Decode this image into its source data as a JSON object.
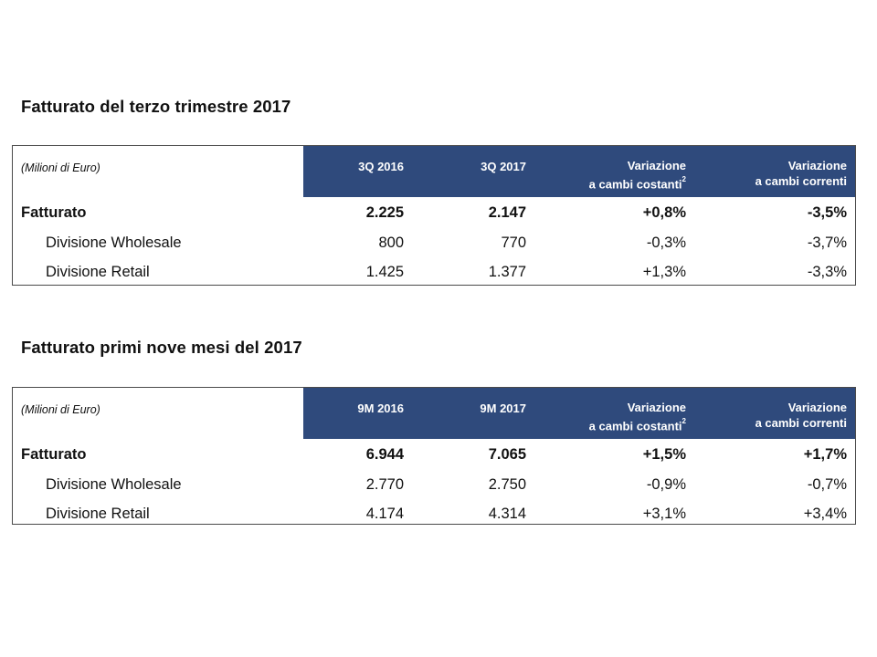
{
  "sections": [
    {
      "title": "Fatturato del terzo trimestre 2017",
      "unit_label": "(Milioni di Euro)",
      "columns": [
        {
          "label": "3Q 2016"
        },
        {
          "label": "3Q 2017"
        },
        {
          "label_line1": "Variazione",
          "label_line2": "a cambi costanti",
          "footnote": "2"
        },
        {
          "label_line1": "Variazione",
          "label_line2": "a cambi correnti"
        }
      ],
      "rows": [
        {
          "label": "Fatturato",
          "values": [
            "2.225",
            "2.147",
            "+0,8%",
            "-3,5%"
          ]
        },
        {
          "label": "Divisione Wholesale",
          "values": [
            "800",
            "770",
            "-0,3%",
            "-3,7%"
          ]
        },
        {
          "label": "Divisione Retail",
          "values": [
            "1.425",
            "1.377",
            "+1,3%",
            "-3,3%"
          ]
        }
      ]
    },
    {
      "title": "Fatturato primi nove mesi del 2017",
      "unit_label": "(Milioni di Euro)",
      "columns": [
        {
          "label": "9M 2016"
        },
        {
          "label": "9M 2017"
        },
        {
          "label_line1": "Variazione",
          "label_line2": "a cambi costanti",
          "footnote": "2"
        },
        {
          "label_line1": "Variazione",
          "label_line2": "a cambi correnti"
        }
      ],
      "rows": [
        {
          "label": "Fatturato",
          "values": [
            "6.944",
            "7.065",
            "+1,5%",
            "+1,7%"
          ]
        },
        {
          "label": "Divisione Wholesale",
          "values": [
            "2.770",
            "2.750",
            "-0,9%",
            "-0,7%"
          ]
        },
        {
          "label": "Divisione Retail",
          "values": [
            "4.174",
            "4.314",
            "+3,1%",
            "+3,4%"
          ]
        }
      ]
    }
  ],
  "colors": {
    "header_band": "#2f4a7c",
    "header_text": "#ffffff",
    "border": "#4a4a4a"
  }
}
